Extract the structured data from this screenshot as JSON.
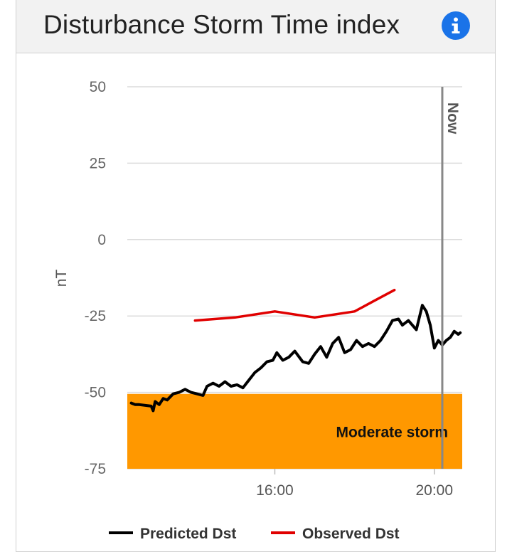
{
  "widget": {
    "title": "Disturbance Storm Time index",
    "info_icon": "info-icon",
    "icon_color": "#1a73e8"
  },
  "chart_data": {
    "type": "line",
    "title": "Disturbance Storm Time index",
    "ylabel": "nT",
    "xlabel": "",
    "ylim": [
      -75,
      50
    ],
    "yticks": [
      "50",
      "25",
      "0",
      "-25",
      "-50",
      "-75"
    ],
    "xticks": [
      {
        "x": 16.0,
        "label": "16:00"
      },
      {
        "x": 20.0,
        "label": "20:00"
      }
    ],
    "xlim": [
      12.3,
      20.7
    ],
    "grid": true,
    "legend_position": "bottom",
    "now_label": "Now",
    "now_x": 20.2,
    "zone": {
      "label": "Moderate storm",
      "from": -75,
      "to": -50.5,
      "color": "#ff9800"
    },
    "series": [
      {
        "name": "Predicted Dst",
        "color": "#000000",
        "x": [
          12.4,
          12.5,
          12.6,
          12.9,
          12.95,
          13.0,
          13.1,
          13.2,
          13.3,
          13.45,
          13.6,
          13.75,
          13.9,
          14.05,
          14.2,
          14.3,
          14.45,
          14.6,
          14.75,
          14.9,
          15.05,
          15.2,
          15.35,
          15.5,
          15.65,
          15.8,
          15.95,
          16.05,
          16.2,
          16.35,
          16.5,
          16.7,
          16.85,
          17.0,
          17.15,
          17.3,
          17.45,
          17.6,
          17.75,
          17.9,
          18.05,
          18.2,
          18.35,
          18.5,
          18.65,
          18.8,
          18.95,
          19.1,
          19.2,
          19.35,
          19.45,
          19.55,
          19.7,
          19.8,
          19.9,
          20.0,
          20.1,
          20.2,
          20.3,
          20.4,
          20.5,
          20.6,
          20.65
        ],
        "values": [
          -53.5,
          -54.0,
          -54.0,
          -54.5,
          -56.0,
          -53.0,
          -54.0,
          -52.0,
          -52.5,
          -50.5,
          -50.0,
          -49.0,
          -50.0,
          -50.5,
          -51.0,
          -48.0,
          -47.0,
          -48.0,
          -46.5,
          -48.0,
          -47.5,
          -48.5,
          -46.0,
          -43.5,
          -42.0,
          -40.0,
          -39.5,
          -37.0,
          -39.5,
          -38.5,
          -36.5,
          -40.0,
          -40.5,
          -37.5,
          -35.0,
          -38.5,
          -34.0,
          -32.0,
          -37.0,
          -36.0,
          -33.0,
          -35.0,
          -34.0,
          -35.0,
          -33.0,
          -30.0,
          -26.5,
          -26.0,
          -28.0,
          -26.5,
          -28.0,
          -29.5,
          -21.5,
          -23.5,
          -28.0,
          -35.5,
          -33.0,
          -34.5,
          -33.0,
          -32.0,
          -30.0,
          -31.0,
          -30.5
        ]
      },
      {
        "name": "Observed Dst",
        "color": "#e00000",
        "x": [
          14.0,
          15.0,
          16.0,
          17.0,
          18.0,
          18.5,
          19.0
        ],
        "values": [
          -26.5,
          -25.5,
          -23.5,
          -25.5,
          -23.5,
          -20.0,
          -16.5
        ]
      }
    ]
  }
}
